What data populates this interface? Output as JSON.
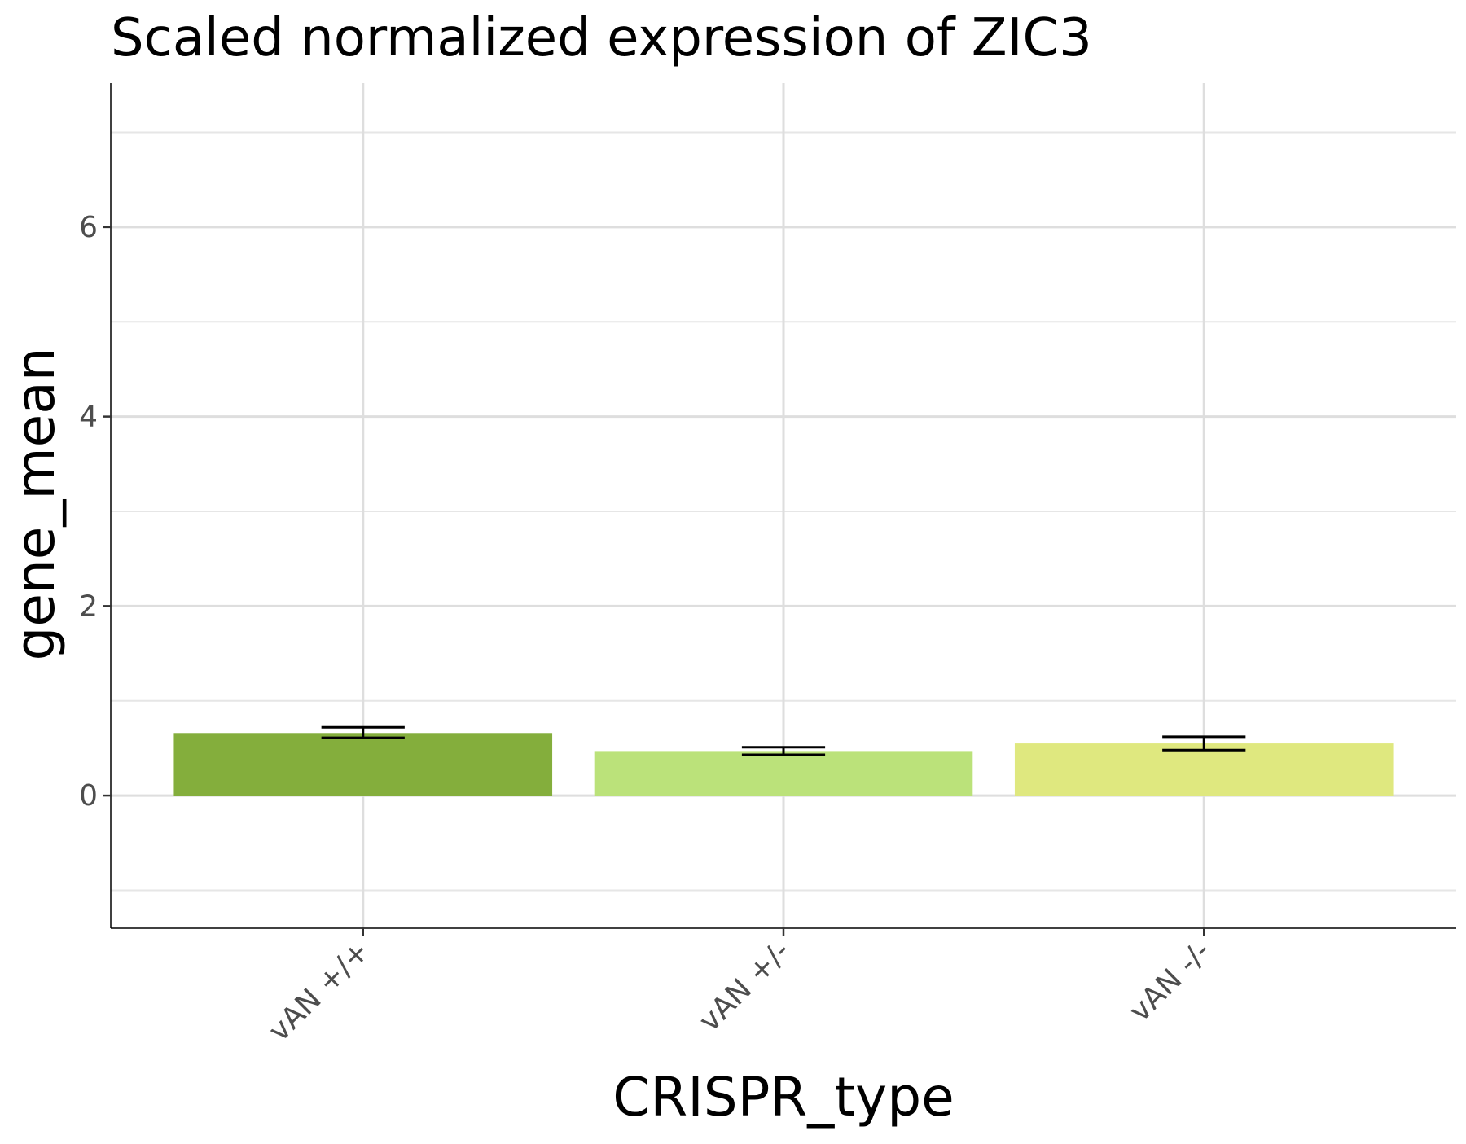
{
  "chart_data": {
    "type": "bar",
    "title": "Scaled normalized expression of ZIC3",
    "xlabel": "CRISPR_type",
    "ylabel": "gene_mean",
    "categories": [
      "vAN +/+",
      "vAN +/-",
      "vAN -/-"
    ],
    "values": [
      0.66,
      0.47,
      0.55
    ],
    "errors": [
      {
        "low": 0.61,
        "high": 0.72
      },
      {
        "low": 0.43,
        "high": 0.51
      },
      {
        "low": 0.48,
        "high": 0.62
      }
    ],
    "colors": [
      "#84ae3c",
      "#bbe27a",
      "#dfe87f"
    ],
    "ylim": [
      -1.4,
      7.52
    ],
    "yticks": [
      0,
      2,
      4,
      6
    ],
    "yticks_minor": [
      -1,
      1,
      3,
      5,
      7
    ],
    "grid": true,
    "legend": "none"
  }
}
